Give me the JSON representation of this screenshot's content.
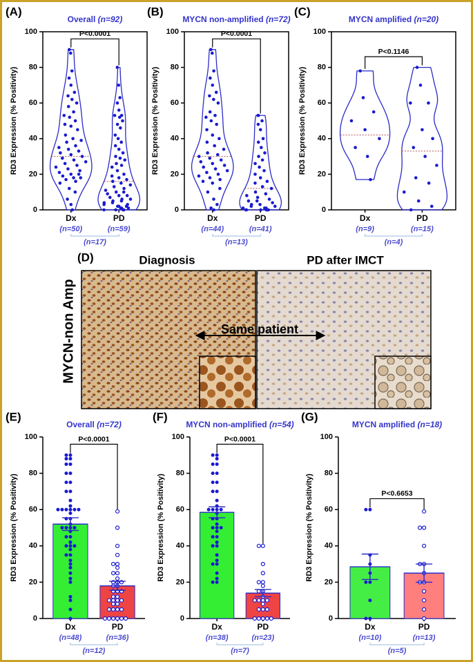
{
  "chart_data": [
    {
      "type": "violin",
      "panel_label": "(A)",
      "title": "Overall",
      "title_n": "(n=92)",
      "y_label": "RD3 Expression (% Positivity)",
      "categories": [
        "Dx",
        "PD"
      ],
      "group_n": [
        "(n=50)",
        "(n=59)"
      ],
      "paired_n": "(n=17)",
      "p_label": "P<0.0001",
      "ylim": [
        0,
        100
      ],
      "yticks": [
        0,
        20,
        40,
        60,
        80,
        100
      ],
      "color": "#1a1ad0",
      "medians": [
        30,
        16
      ],
      "points": [
        [
          90,
          88,
          78,
          74,
          70,
          66,
          64,
          62,
          60,
          58,
          55,
          53,
          52,
          50,
          48,
          47,
          45,
          42,
          40,
          39,
          38,
          36,
          35,
          34,
          33,
          32,
          31,
          30,
          29,
          28,
          27,
          26,
          25,
          24,
          23,
          22,
          21,
          20,
          20,
          19,
          18,
          18,
          17,
          16,
          15,
          12,
          10,
          6,
          3,
          0
        ],
        [
          80,
          70,
          63,
          60,
          56,
          53,
          53,
          52,
          50,
          48,
          46,
          42,
          40,
          38,
          36,
          34,
          32,
          30,
          29,
          28,
          26,
          25,
          24,
          22,
          20,
          19,
          18,
          17,
          16,
          15,
          14,
          13,
          12,
          11,
          10,
          10,
          9,
          8,
          8,
          7,
          6,
          6,
          5,
          5,
          4,
          4,
          3,
          3,
          2,
          2,
          2,
          1,
          1,
          1,
          0,
          0,
          0,
          0,
          0
        ]
      ]
    },
    {
      "type": "violin",
      "panel_label": "(B)",
      "title": "MYCN non-amplified",
      "title_n": "(n=72)",
      "y_label": "RD3 Expression (% Positivity)",
      "categories": [
        "Dx",
        "PD"
      ],
      "group_n": [
        "(n=44)",
        "(n=41)"
      ],
      "paired_n": "(n=13)",
      "p_label": "P<0.0001",
      "ylim": [
        0,
        100
      ],
      "yticks": [
        0,
        20,
        40,
        60,
        80,
        100
      ],
      "color": "#1a1ad0",
      "medians": [
        30,
        12
      ],
      "points": [
        [
          90,
          88,
          78,
          74,
          70,
          66,
          64,
          62,
          60,
          55,
          53,
          52,
          50,
          48,
          45,
          42,
          40,
          38,
          36,
          34,
          32,
          31,
          30,
          29,
          28,
          27,
          26,
          25,
          24,
          23,
          22,
          21,
          20,
          19,
          18,
          17,
          16,
          15,
          12,
          10,
          6,
          3,
          1,
          0
        ],
        [
          53,
          53,
          50,
          48,
          45,
          40,
          38,
          35,
          32,
          30,
          28,
          26,
          24,
          22,
          20,
          18,
          16,
          15,
          13,
          12,
          10,
          9,
          8,
          7,
          6,
          5,
          5,
          4,
          3,
          3,
          2,
          2,
          1,
          1,
          1,
          0,
          0,
          0,
          0,
          0,
          0
        ]
      ]
    },
    {
      "type": "violin",
      "panel_label": "(C)",
      "title": "MYCN amplified",
      "title_n": "(n=20)",
      "y_label": "RD3 Expression (% Positivity)",
      "categories": [
        "Dx",
        "PD"
      ],
      "group_n": [
        "(n=9)",
        "(n=15)"
      ],
      "paired_n": "(n=4)",
      "p_label": "P<0.1146",
      "ylim": [
        0,
        100
      ],
      "yticks": [
        0,
        20,
        40,
        60,
        80,
        100
      ],
      "color": "#1a1ad0",
      "medians": [
        42,
        33
      ],
      "points": [
        [
          78,
          63,
          55,
          50,
          45,
          40,
          35,
          30,
          17
        ],
        [
          80,
          70,
          60,
          60,
          45,
          40,
          35,
          30,
          25,
          18,
          15,
          10,
          5,
          2,
          0
        ]
      ]
    },
    {
      "type": "bar",
      "panel_label": "(E)",
      "title": "Overall",
      "title_n": "(n=72)",
      "y_label": "RD3 Expression (% Positivity)",
      "categories": [
        "Dx",
        "PD"
      ],
      "group_n": [
        "(n=48)",
        "(n=36)"
      ],
      "paired_n": "(n=12)",
      "p_label": "P<0.0001",
      "ylim": [
        0,
        100
      ],
      "yticks": [
        0,
        20,
        40,
        60,
        80,
        100
      ],
      "color": "#1a1ad0",
      "bar_colors": [
        "#33ee33",
        "#ee4444"
      ],
      "values": [
        52,
        18
      ],
      "errors": [
        3.5,
        2.5
      ],
      "points": [
        [
          90,
          90,
          88,
          88,
          85,
          85,
          80,
          80,
          75,
          75,
          70,
          70,
          65,
          62,
          60,
          60,
          60,
          60,
          60,
          60,
          58,
          55,
          55,
          52,
          50,
          50,
          50,
          50,
          48,
          45,
          45,
          42,
          40,
          40,
          40,
          38,
          35,
          35,
          32,
          30,
          28,
          25,
          22,
          20,
          12,
          10,
          5,
          0
        ],
        [
          59,
          50,
          40,
          35,
          30,
          30,
          28,
          25,
          25,
          22,
          20,
          20,
          20,
          18,
          18,
          15,
          15,
          15,
          12,
          12,
          10,
          10,
          10,
          10,
          8,
          8,
          5,
          5,
          5,
          5,
          0,
          0,
          0,
          0,
          0,
          0
        ]
      ]
    },
    {
      "type": "bar",
      "panel_label": "(F)",
      "title": "MYCN non-amplified",
      "title_n": "(n=54)",
      "y_label": "RD3 Expression (% Positivity)",
      "categories": [
        "Dx",
        "PD"
      ],
      "group_n": [
        "(n=38)",
        "(n=23)"
      ],
      "paired_n": "(n=7)",
      "p_label": "P<0.0001",
      "ylim": [
        0,
        100
      ],
      "yticks": [
        0,
        20,
        40,
        60,
        80,
        100
      ],
      "color": "#1a1ad0",
      "bar_colors": [
        "#33ee33",
        "#ee4444"
      ],
      "values": [
        58.5,
        14
      ],
      "errors": [
        3,
        2
      ],
      "points": [
        [
          90,
          90,
          88,
          85,
          85,
          80,
          80,
          75,
          75,
          70,
          70,
          65,
          62,
          60,
          60,
          60,
          60,
          58,
          55,
          55,
          52,
          50,
          50,
          50,
          48,
          45,
          45,
          42,
          40,
          40,
          35,
          32,
          30,
          30,
          25,
          22,
          20,
          20
        ],
        [
          40,
          40,
          30,
          25,
          20,
          20,
          18,
          15,
          15,
          12,
          10,
          10,
          10,
          10,
          8,
          5,
          5,
          5,
          0,
          0,
          0,
          0,
          0
        ]
      ]
    },
    {
      "type": "bar",
      "panel_label": "(G)",
      "title": "MYCN amplified",
      "title_n": "(n=18)",
      "y_label": "RD3 Expression (% Positivity)",
      "categories": [
        "Dx",
        "PD"
      ],
      "group_n": [
        "(n=10)",
        "(n=13)"
      ],
      "paired_n": "(n=5)",
      "p_label": "P<0.6653",
      "ylim": [
        0,
        100
      ],
      "yticks": [
        0,
        20,
        40,
        60,
        80,
        100
      ],
      "color": "#1a1ad0",
      "bar_colors": [
        "#44ee44",
        "#ff7f7f"
      ],
      "values": [
        28.5,
        25
      ],
      "errors": [
        7,
        5
      ],
      "points": [
        [
          60,
          60,
          35,
          30,
          25,
          20,
          20,
          10,
          0,
          0
        ],
        [
          59,
          50,
          50,
          40,
          30,
          30,
          25,
          20,
          20,
          15,
          10,
          5,
          0
        ]
      ]
    }
  ],
  "image_panel": {
    "label": "(D)",
    "left_title": "Diagnosis",
    "right_title": "PD after IMCT",
    "row_label": "MYCN-non Amp",
    "arrow_label": "Same patient"
  }
}
